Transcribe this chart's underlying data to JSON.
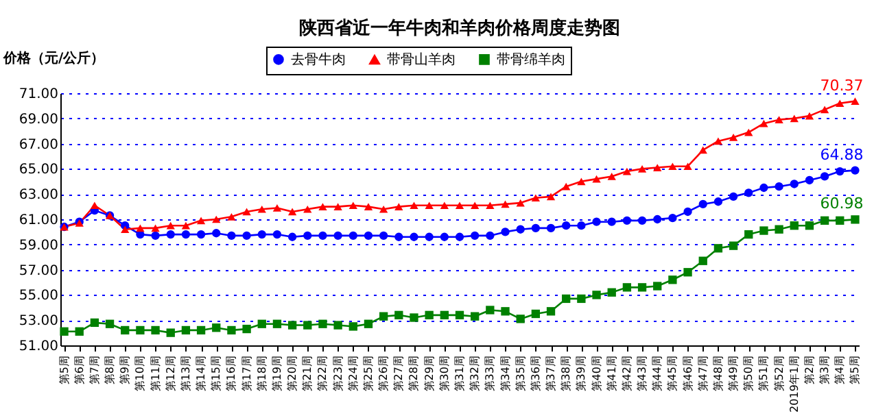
{
  "chart_data": {
    "type": "line",
    "title": "陕西省近一年牛肉和羊肉价格周度走势图",
    "ylabel": "价格（元/公斤）",
    "categories": [
      "第5周",
      "第6周",
      "第7周",
      "第8周",
      "第9周",
      "第10周",
      "第11周",
      "第12周",
      "第13周",
      "第14周",
      "第15周",
      "第16周",
      "第17周",
      "第18周",
      "第19周",
      "第20周",
      "第21周",
      "第22周",
      "第23周",
      "第24周",
      "第25周",
      "第26周",
      "第27周",
      "第28周",
      "第29周",
      "第30周",
      "第31周",
      "第32周",
      "第33周",
      "第34周",
      "第35周",
      "第36周",
      "第37周",
      "第38周",
      "第39周",
      "第40周",
      "第41周",
      "第42周",
      "第43周",
      "第44周",
      "第45周",
      "第46周",
      "第47周",
      "第48周",
      "第49周",
      "第50周",
      "第51周",
      "第52周",
      "2019年1周",
      "第2周",
      "第3周",
      "第4周",
      "第5周"
    ],
    "series": [
      {
        "name": "去骨牛肉",
        "color": "#0000ff",
        "marker": "circle",
        "values": [
          60.4,
          60.8,
          61.7,
          61.3,
          60.5,
          59.8,
          59.7,
          59.8,
          59.8,
          59.8,
          59.9,
          59.7,
          59.7,
          59.8,
          59.8,
          59.6,
          59.7,
          59.7,
          59.7,
          59.7,
          59.7,
          59.7,
          59.6,
          59.6,
          59.6,
          59.6,
          59.6,
          59.7,
          59.7,
          60.0,
          60.2,
          60.3,
          60.3,
          60.5,
          60.5,
          60.8,
          60.8,
          60.9,
          60.9,
          61.0,
          61.1,
          61.6,
          62.2,
          62.4,
          62.8,
          63.1,
          63.5,
          63.6,
          63.8,
          64.1,
          64.4,
          64.8,
          64.88
        ],
        "value_labels": [
          null,
          null,
          null,
          null,
          null,
          null,
          null,
          null,
          null,
          null,
          null,
          null,
          null,
          null,
          null,
          null,
          null,
          null,
          null,
          null,
          null,
          null,
          null,
          null,
          null,
          null,
          null,
          null,
          null,
          null,
          null,
          null,
          null,
          null,
          null,
          null,
          null,
          null,
          null,
          null,
          null,
          null,
          null,
          null,
          null,
          null,
          null,
          null,
          null,
          null,
          null,
          null,
          "64.88"
        ]
      },
      {
        "name": "带骨山羊肉",
        "color": "#ff0000",
        "marker": "triangle",
        "values": [
          60.4,
          60.7,
          62.1,
          61.3,
          60.2,
          60.3,
          60.3,
          60.5,
          60.5,
          60.9,
          61.0,
          61.2,
          61.6,
          61.8,
          61.9,
          61.6,
          61.8,
          62.0,
          62.0,
          62.1,
          62.0,
          61.8,
          62.0,
          62.1,
          62.1,
          62.1,
          62.1,
          62.1,
          62.1,
          62.2,
          62.3,
          62.7,
          62.8,
          63.6,
          64.0,
          64.2,
          64.4,
          64.8,
          65.0,
          65.1,
          65.2,
          65.2,
          66.5,
          67.2,
          67.5,
          67.9,
          68.6,
          68.9,
          69.0,
          69.2,
          69.7,
          70.2,
          70.37
        ],
        "value_labels": [
          null,
          null,
          null,
          null,
          null,
          null,
          null,
          null,
          null,
          null,
          null,
          null,
          null,
          null,
          null,
          null,
          null,
          null,
          null,
          null,
          null,
          null,
          null,
          null,
          null,
          null,
          null,
          null,
          null,
          null,
          null,
          null,
          null,
          null,
          null,
          null,
          null,
          null,
          null,
          null,
          null,
          null,
          null,
          null,
          null,
          null,
          null,
          null,
          null,
          null,
          null,
          null,
          "70.37"
        ]
      },
      {
        "name": "带骨绵羊肉",
        "color": "#008000",
        "marker": "square",
        "values": [
          52.1,
          52.1,
          52.8,
          52.7,
          52.2,
          52.2,
          52.2,
          52.0,
          52.2,
          52.2,
          52.4,
          52.2,
          52.3,
          52.7,
          52.7,
          52.6,
          52.6,
          52.7,
          52.6,
          52.5,
          52.7,
          53.3,
          53.4,
          53.2,
          53.4,
          53.4,
          53.4,
          53.3,
          53.8,
          53.7,
          53.1,
          53.5,
          53.7,
          54.7,
          54.7,
          55.0,
          55.2,
          55.6,
          55.6,
          55.7,
          56.2,
          56.8,
          57.7,
          58.7,
          58.9,
          59.8,
          60.1,
          60.2,
          60.5,
          60.5,
          60.9,
          60.9,
          60.98
        ],
        "value_labels": [
          null,
          null,
          null,
          null,
          null,
          null,
          null,
          null,
          null,
          null,
          null,
          null,
          null,
          null,
          null,
          null,
          null,
          null,
          null,
          null,
          null,
          null,
          null,
          null,
          null,
          null,
          null,
          null,
          null,
          null,
          null,
          null,
          null,
          null,
          null,
          null,
          null,
          null,
          null,
          null,
          null,
          null,
          null,
          null,
          null,
          null,
          null,
          null,
          null,
          null,
          null,
          null,
          "60.98"
        ]
      }
    ],
    "ylim": [
      51,
      71
    ],
    "yticks": [
      {
        "value": 51,
        "label": "51.00"
      },
      {
        "value": 53,
        "label": "53.00"
      },
      {
        "value": 55,
        "label": "55.00"
      },
      {
        "value": 57,
        "label": "57.00"
      },
      {
        "value": 59,
        "label": "59.00"
      },
      {
        "value": 61,
        "label": "61.00"
      },
      {
        "value": 63,
        "label": "63.00"
      },
      {
        "value": 65,
        "label": "65.00"
      },
      {
        "value": 67,
        "label": "67.00"
      },
      {
        "value": 69,
        "label": "69.00"
      },
      {
        "value": 71,
        "label": "71.00"
      }
    ],
    "grid": "y",
    "legend": "top",
    "line_style": "solid"
  }
}
